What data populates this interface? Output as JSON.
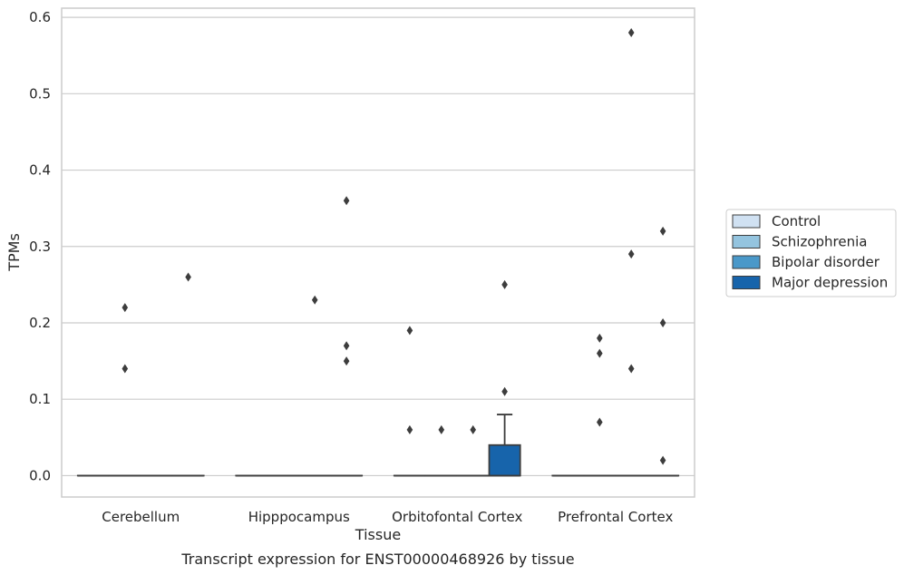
{
  "chart_data": {
    "type": "box",
    "title": "Transcript expression for ENST00000468926 by tissue",
    "xlabel": "Tissue",
    "ylabel": "TPMs",
    "ylim": [
      -0.028,
      0.612
    ],
    "yticks": [
      "0.0",
      "0.1",
      "0.2",
      "0.3",
      "0.4",
      "0.5",
      "0.6"
    ],
    "grid": "horizontal",
    "legend_position": "right",
    "categories": [
      "Cerebellum",
      "Hipppocampus",
      "Orbitofontal Cortex",
      "Prefrontal Cortex"
    ],
    "series": [
      {
        "name": "Control",
        "color": "#d0e1f2",
        "boxes": [
          {
            "q1": 0,
            "median": 0,
            "q3": 0,
            "whisker_low": 0,
            "whisker_high": 0,
            "outliers": []
          },
          {
            "q1": 0,
            "median": 0,
            "q3": 0,
            "whisker_low": 0,
            "whisker_high": 0,
            "outliers": []
          },
          {
            "q1": 0,
            "median": 0,
            "q3": 0,
            "whisker_low": 0,
            "whisker_high": 0,
            "outliers": [
              0.19,
              0.06
            ]
          },
          {
            "q1": 0,
            "median": 0,
            "q3": 0,
            "whisker_low": 0,
            "whisker_high": 0,
            "outliers": []
          }
        ]
      },
      {
        "name": "Schizophrenia",
        "color": "#94c4df",
        "boxes": [
          {
            "q1": 0,
            "median": 0,
            "q3": 0,
            "whisker_low": 0,
            "whisker_high": 0,
            "outliers": [
              0.22,
              0.14
            ]
          },
          {
            "q1": 0,
            "median": 0,
            "q3": 0,
            "whisker_low": 0,
            "whisker_high": 0,
            "outliers": []
          },
          {
            "q1": 0,
            "median": 0,
            "q3": 0,
            "whisker_low": 0,
            "whisker_high": 0,
            "outliers": [
              0.06
            ]
          },
          {
            "q1": 0,
            "median": 0,
            "q3": 0,
            "whisker_low": 0,
            "whisker_high": 0,
            "outliers": [
              0.18,
              0.16,
              0.07
            ]
          }
        ]
      },
      {
        "name": "Bipolar disorder",
        "color": "#4a98c9",
        "boxes": [
          {
            "q1": 0,
            "median": 0,
            "q3": 0,
            "whisker_low": 0,
            "whisker_high": 0,
            "outliers": []
          },
          {
            "q1": 0,
            "median": 0,
            "q3": 0,
            "whisker_low": 0,
            "whisker_high": 0,
            "outliers": [
              0.23
            ]
          },
          {
            "q1": 0,
            "median": 0,
            "q3": 0,
            "whisker_low": 0,
            "whisker_high": 0,
            "outliers": [
              0.06
            ]
          },
          {
            "q1": 0,
            "median": 0,
            "q3": 0,
            "whisker_low": 0,
            "whisker_high": 0,
            "outliers": [
              0.58,
              0.29,
              0.14
            ]
          }
        ]
      },
      {
        "name": "Major depression",
        "color": "#1764ab",
        "boxes": [
          {
            "q1": 0,
            "median": 0,
            "q3": 0,
            "whisker_low": 0,
            "whisker_high": 0,
            "outliers": [
              0.26
            ]
          },
          {
            "q1": 0,
            "median": 0,
            "q3": 0,
            "whisker_low": 0,
            "whisker_high": 0,
            "outliers": [
              0.36,
              0.17,
              0.15
            ]
          },
          {
            "q1": 0,
            "median": 0,
            "q3": 0.04,
            "whisker_low": 0,
            "whisker_high": 0.08,
            "outliers": [
              0.25,
              0.11
            ]
          },
          {
            "q1": 0,
            "median": 0,
            "q3": 0,
            "whisker_low": 0,
            "whisker_high": 0,
            "outliers": [
              0.32,
              0.2,
              0.02
            ]
          }
        ]
      }
    ]
  }
}
